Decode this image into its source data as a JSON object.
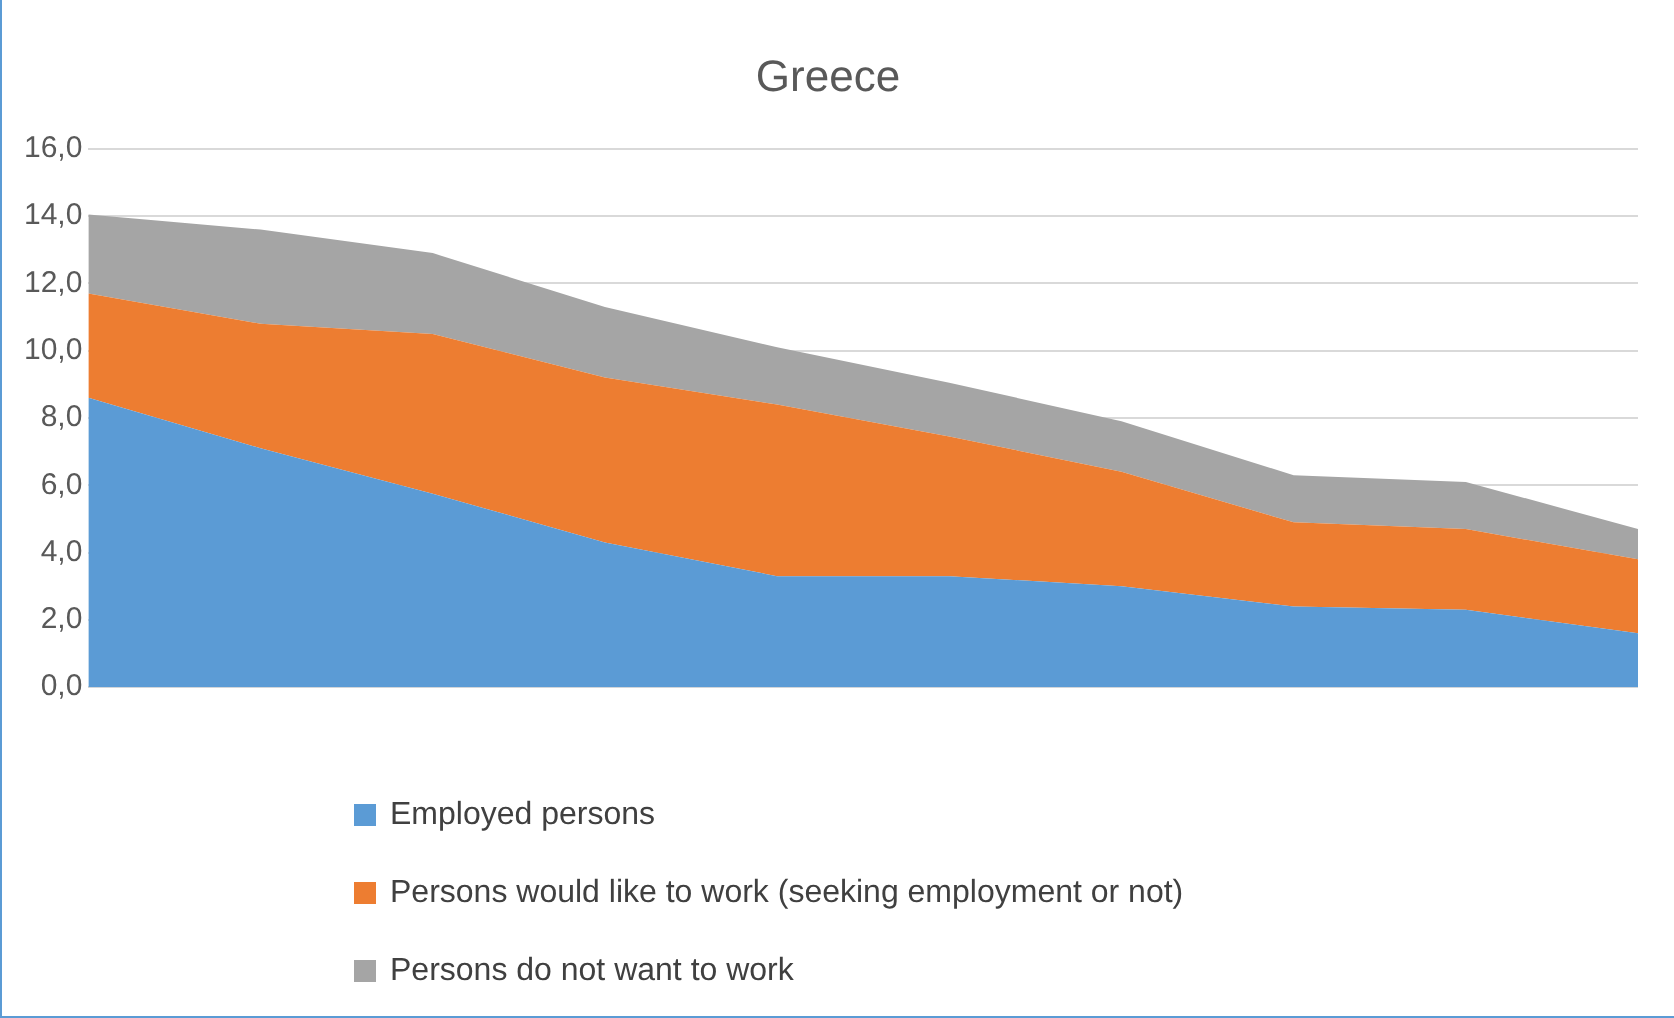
{
  "chart_data": {
    "type": "area",
    "title": "Greece",
    "stacked": true,
    "categories": [
      null,
      null,
      null,
      null,
      null,
      null,
      null,
      null,
      null,
      null
    ],
    "series": [
      {
        "name": "Employed persons",
        "color": "#5b9bd5",
        "values": [
          8.6,
          7.1,
          5.75,
          4.3,
          3.3,
          3.3,
          3.0,
          2.4,
          2.3,
          1.6
        ]
      },
      {
        "name": "Persons would like to work (seeking employment or not)",
        "color": "#ed7d31",
        "values": [
          3.1,
          3.7,
          4.75,
          4.9,
          5.1,
          4.15,
          3.4,
          2.5,
          2.4,
          2.2
        ]
      },
      {
        "name": "Persons do not want to work",
        "color": "#a5a5a5",
        "values": [
          2.35,
          2.8,
          2.4,
          2.1,
          1.7,
          1.6,
          1.5,
          1.4,
          1.4,
          0.9
        ]
      }
    ],
    "ylim": [
      0,
      16
    ],
    "yticks": [
      {
        "value": 0,
        "label": "0,0"
      },
      {
        "value": 2,
        "label": "2,0"
      },
      {
        "value": 4,
        "label": "4,0"
      },
      {
        "value": 6,
        "label": "6,0"
      },
      {
        "value": 8,
        "label": "8,0"
      },
      {
        "value": 10,
        "label": "10,0"
      },
      {
        "value": 12,
        "label": "12,0"
      },
      {
        "value": 14,
        "label": "14,0"
      },
      {
        "value": 16,
        "label": "16,0"
      }
    ],
    "grid": "y",
    "legend": "bottom"
  }
}
